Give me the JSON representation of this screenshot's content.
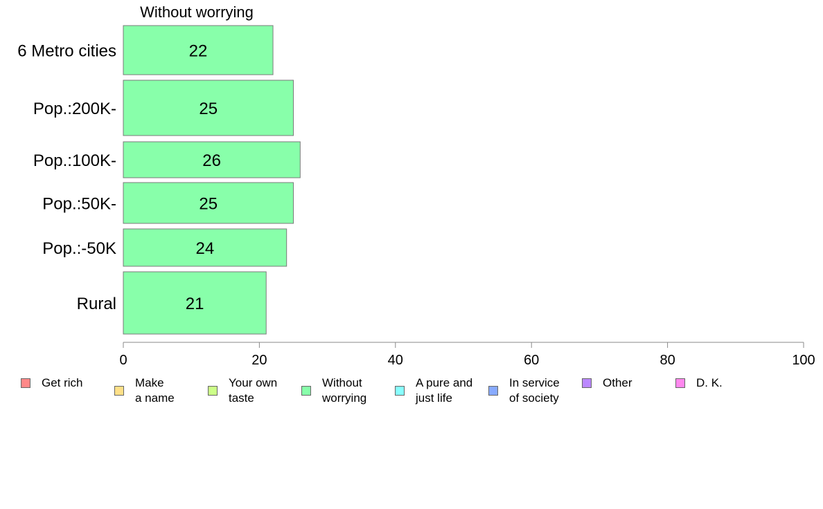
{
  "chart_data": {
    "type": "bar",
    "orientation": "horizontal",
    "panel_title": "Without worrying",
    "categories": [
      "6 Metro cities",
      "Pop.:200K-",
      "Pop.:100K-",
      "Pop.:50K-",
      "Pop.:-50K",
      "Rural"
    ],
    "series": [
      {
        "name": "Without worrying",
        "color": "#88ffaa",
        "values": [
          22,
          25,
          26,
          25,
          24,
          21
        ]
      }
    ],
    "xlim": [
      0,
      100
    ],
    "xticks": [
      0,
      20,
      40,
      60,
      80,
      100
    ],
    "grid": false,
    "legend_position": "bottom",
    "legend": [
      {
        "label": "Get rich",
        "color": "#ff8888"
      },
      {
        "label": "Make\na name",
        "color": "#ffe088"
      },
      {
        "label": "Your own\ntaste",
        "color": "#ccff88"
      },
      {
        "label": "Without\nworrying",
        "color": "#88ffaa"
      },
      {
        "label": "A pure and\njust life",
        "color": "#88ffff"
      },
      {
        "label": "In service\nof society",
        "color": "#88aaff"
      },
      {
        "label": "Other",
        "color": "#bb88ff"
      },
      {
        "label": "D. K.",
        "color": "#ff88ee"
      }
    ]
  }
}
